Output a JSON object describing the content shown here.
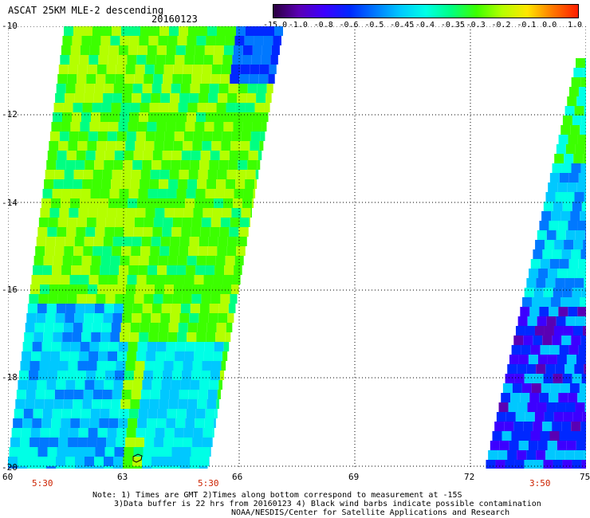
{
  "header": {
    "title": "ASCAT 25KM MLE-2 descending",
    "date": "20160123"
  },
  "colorbar": {
    "labels": [
      "-15.0",
      "-1.0",
      "-0.8",
      "-0.6",
      "-0.5",
      "-0.45",
      "-0.4",
      "-0.35",
      "-0.3",
      "-0.2",
      "-0.1",
      "0.0",
      "1.0"
    ],
    "colors": [
      "#2a003f",
      "#5a00b4",
      "#3c00ff",
      "#0028ff",
      "#0078ff",
      "#00c8ff",
      "#00ffe6",
      "#00ff82",
      "#3cff00",
      "#b4ff00",
      "#ffe600",
      "#ff7800",
      "#ff1e00"
    ]
  },
  "map": {
    "lat_ticks": [
      "-10",
      "-12",
      "-14",
      "-16",
      "-18",
      "-20"
    ],
    "lon_ticks": [
      "60",
      "63",
      "66",
      "69",
      "72",
      "75"
    ],
    "lat_range": [
      -20,
      -10
    ],
    "lon_range": [
      60,
      75
    ],
    "time_labels": [
      "5:30",
      "5:30",
      "3:50"
    ]
  },
  "notes": {
    "line1": "Note: 1) Times are GMT 2)Times along bottom correspond to measurement at -15S",
    "line2": "3)Data buffer is 22 hrs from 20160123 4) Black wind barbs indicate possible contamination",
    "line3": "NOAA/NESDIS/Center for Satellite Applications and Research"
  }
}
